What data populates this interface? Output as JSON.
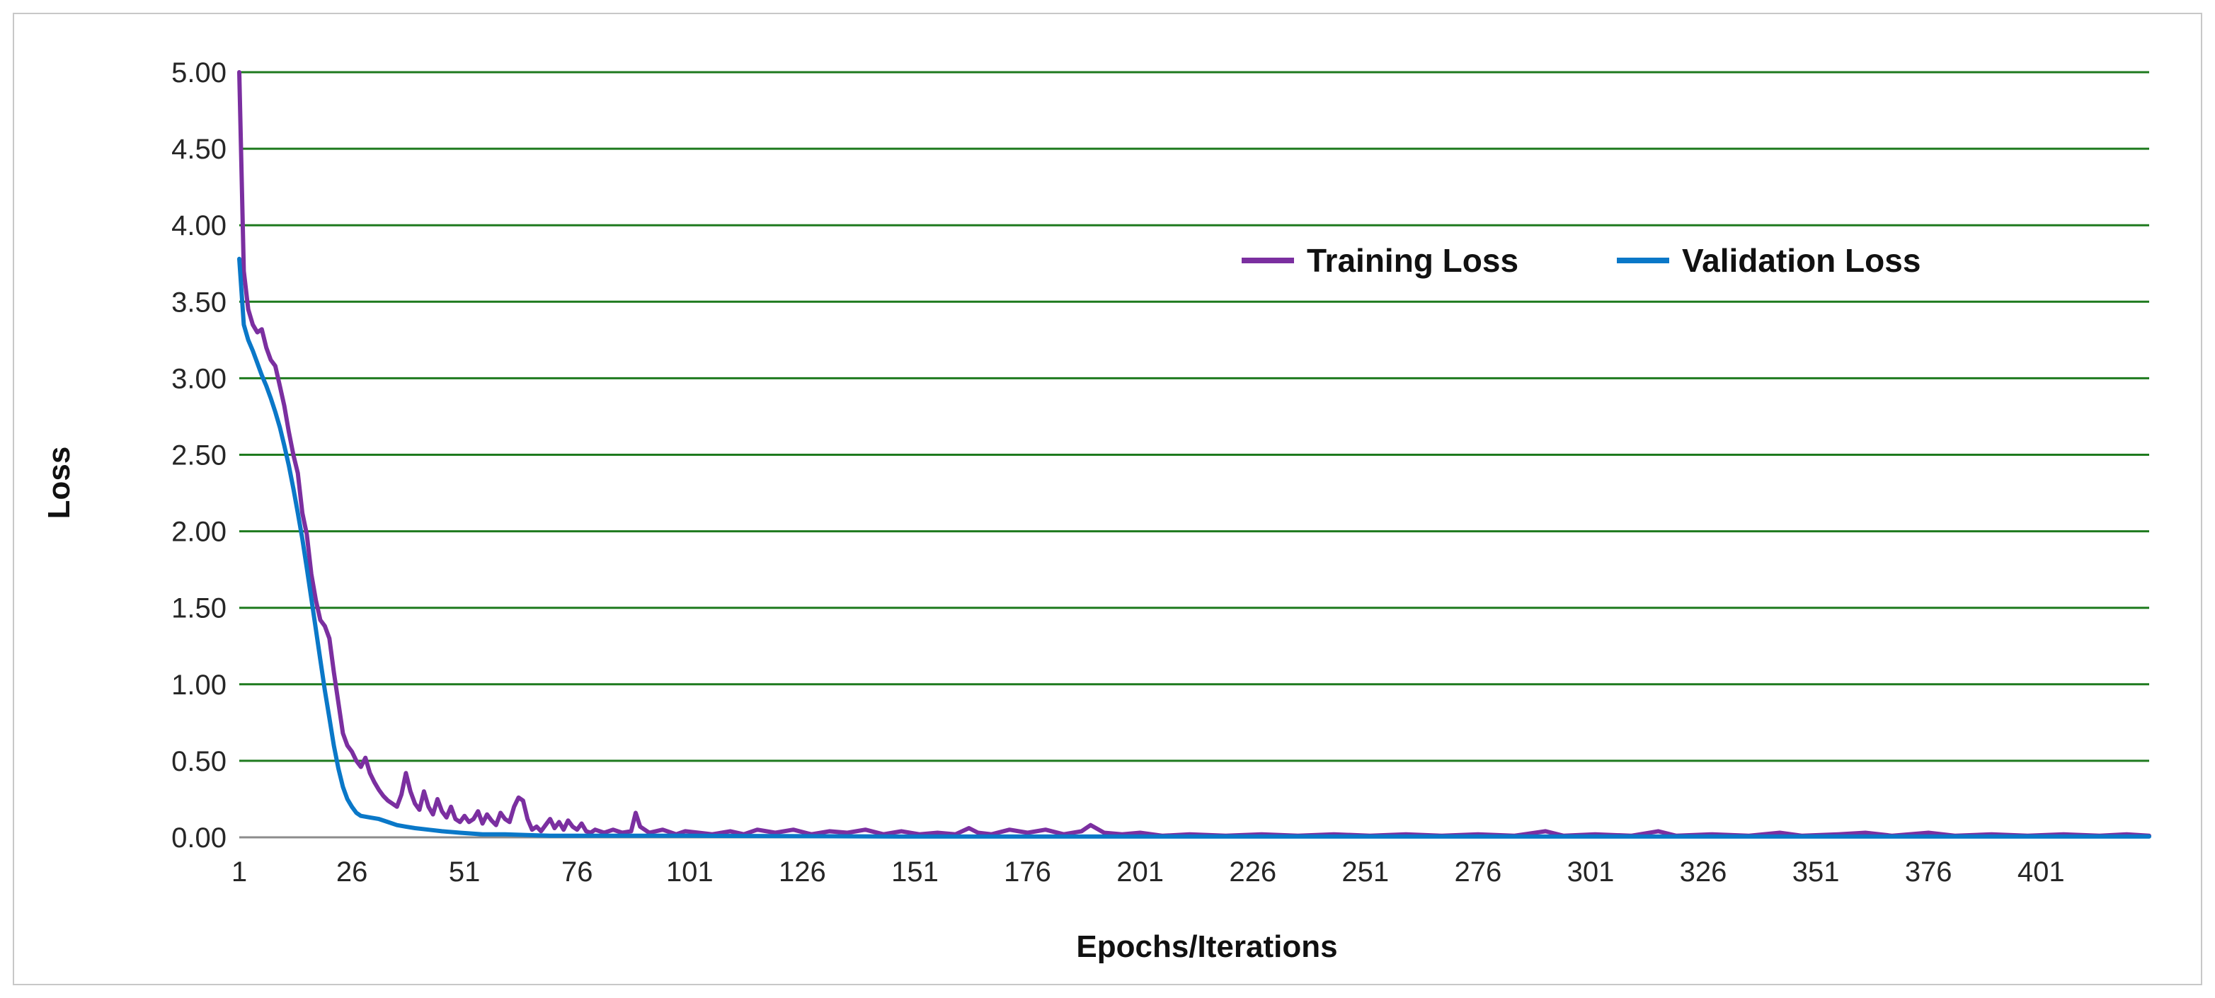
{
  "chart_data": {
    "type": "line",
    "title": "",
    "xlabel": "Epochs/Iterations",
    "ylabel": "Loss",
    "xlim": [
      1,
      425
    ],
    "ylim": [
      0,
      5
    ],
    "y_ticks": [
      "0.00",
      "0.50",
      "1.00",
      "1.50",
      "2.00",
      "2.50",
      "3.00",
      "3.50",
      "4.00",
      "4.50",
      "5.00"
    ],
    "y_tick_values": [
      0,
      0.5,
      1,
      1.5,
      2,
      2.5,
      3,
      3.5,
      4,
      4.5,
      5
    ],
    "x_ticks": [
      "1",
      "26",
      "51",
      "76",
      "101",
      "126",
      "151",
      "176",
      "201",
      "226",
      "251",
      "276",
      "301",
      "326",
      "351",
      "376",
      "401"
    ],
    "x_tick_values": [
      1,
      26,
      51,
      76,
      101,
      126,
      151,
      176,
      201,
      226,
      251,
      276,
      301,
      326,
      351,
      376,
      401
    ],
    "grid": "horizontal",
    "gridline_color": "#1e7a1e",
    "legend_position": "top-right",
    "series": [
      {
        "name": "Training Loss",
        "color": "#7b2fa0",
        "points": [
          [
            1,
            5.0
          ],
          [
            2,
            3.7
          ],
          [
            3,
            3.45
          ],
          [
            4,
            3.35
          ],
          [
            5,
            3.3
          ],
          [
            6,
            3.32
          ],
          [
            7,
            3.2
          ],
          [
            8,
            3.12
          ],
          [
            9,
            3.08
          ],
          [
            10,
            2.95
          ],
          [
            11,
            2.82
          ],
          [
            12,
            2.65
          ],
          [
            13,
            2.5
          ],
          [
            14,
            2.38
          ],
          [
            15,
            2.12
          ],
          [
            16,
            1.98
          ],
          [
            17,
            1.72
          ],
          [
            18,
            1.55
          ],
          [
            19,
            1.42
          ],
          [
            20,
            1.38
          ],
          [
            21,
            1.3
          ],
          [
            22,
            1.08
          ],
          [
            23,
            0.88
          ],
          [
            24,
            0.68
          ],
          [
            25,
            0.6
          ],
          [
            26,
            0.56
          ],
          [
            27,
            0.5
          ],
          [
            28,
            0.46
          ],
          [
            29,
            0.52
          ],
          [
            30,
            0.42
          ],
          [
            31,
            0.36
          ],
          [
            32,
            0.31
          ],
          [
            33,
            0.27
          ],
          [
            34,
            0.24
          ],
          [
            35,
            0.22
          ],
          [
            36,
            0.2
          ],
          [
            37,
            0.28
          ],
          [
            38,
            0.42
          ],
          [
            39,
            0.3
          ],
          [
            40,
            0.22
          ],
          [
            41,
            0.18
          ],
          [
            42,
            0.3
          ],
          [
            43,
            0.2
          ],
          [
            44,
            0.15
          ],
          [
            45,
            0.25
          ],
          [
            46,
            0.17
          ],
          [
            47,
            0.13
          ],
          [
            48,
            0.2
          ],
          [
            49,
            0.12
          ],
          [
            50,
            0.1
          ],
          [
            51,
            0.14
          ],
          [
            52,
            0.1
          ],
          [
            53,
            0.12
          ],
          [
            54,
            0.17
          ],
          [
            55,
            0.09
          ],
          [
            56,
            0.15
          ],
          [
            57,
            0.11
          ],
          [
            58,
            0.08
          ],
          [
            59,
            0.16
          ],
          [
            60,
            0.12
          ],
          [
            61,
            0.1
          ],
          [
            62,
            0.2
          ],
          [
            63,
            0.26
          ],
          [
            64,
            0.24
          ],
          [
            65,
            0.12
          ],
          [
            66,
            0.05
          ],
          [
            67,
            0.07
          ],
          [
            68,
            0.04
          ],
          [
            69,
            0.08
          ],
          [
            70,
            0.12
          ],
          [
            71,
            0.06
          ],
          [
            72,
            0.1
          ],
          [
            73,
            0.05
          ],
          [
            74,
            0.11
          ],
          [
            75,
            0.07
          ],
          [
            76,
            0.05
          ],
          [
            77,
            0.09
          ],
          [
            78,
            0.04
          ],
          [
            79,
            0.03
          ],
          [
            80,
            0.05
          ],
          [
            82,
            0.03
          ],
          [
            84,
            0.05
          ],
          [
            86,
            0.03
          ],
          [
            88,
            0.04
          ],
          [
            89,
            0.16
          ],
          [
            90,
            0.07
          ],
          [
            92,
            0.03
          ],
          [
            95,
            0.05
          ],
          [
            98,
            0.02
          ],
          [
            100,
            0.04
          ],
          [
            103,
            0.03
          ],
          [
            106,
            0.02
          ],
          [
            110,
            0.04
          ],
          [
            113,
            0.02
          ],
          [
            116,
            0.05
          ],
          [
            120,
            0.03
          ],
          [
            124,
            0.05
          ],
          [
            128,
            0.02
          ],
          [
            132,
            0.04
          ],
          [
            136,
            0.03
          ],
          [
            140,
            0.05
          ],
          [
            144,
            0.02
          ],
          [
            148,
            0.04
          ],
          [
            152,
            0.02
          ],
          [
            156,
            0.03
          ],
          [
            160,
            0.02
          ],
          [
            163,
            0.06
          ],
          [
            165,
            0.03
          ],
          [
            168,
            0.02
          ],
          [
            172,
            0.05
          ],
          [
            176,
            0.03
          ],
          [
            180,
            0.05
          ],
          [
            184,
            0.02
          ],
          [
            188,
            0.04
          ],
          [
            190,
            0.08
          ],
          [
            193,
            0.03
          ],
          [
            197,
            0.02
          ],
          [
            201,
            0.03
          ],
          [
            206,
            0.01
          ],
          [
            212,
            0.02
          ],
          [
            220,
            0.01
          ],
          [
            228,
            0.02
          ],
          [
            236,
            0.01
          ],
          [
            244,
            0.02
          ],
          [
            252,
            0.01
          ],
          [
            260,
            0.02
          ],
          [
            268,
            0.01
          ],
          [
            276,
            0.02
          ],
          [
            284,
            0.01
          ],
          [
            291,
            0.04
          ],
          [
            295,
            0.01
          ],
          [
            302,
            0.02
          ],
          [
            310,
            0.01
          ],
          [
            316,
            0.04
          ],
          [
            320,
            0.01
          ],
          [
            328,
            0.02
          ],
          [
            336,
            0.01
          ],
          [
            343,
            0.03
          ],
          [
            348,
            0.01
          ],
          [
            356,
            0.02
          ],
          [
            362,
            0.03
          ],
          [
            368,
            0.01
          ],
          [
            376,
            0.03
          ],
          [
            382,
            0.01
          ],
          [
            390,
            0.02
          ],
          [
            398,
            0.01
          ],
          [
            406,
            0.02
          ],
          [
            414,
            0.01
          ],
          [
            420,
            0.02
          ],
          [
            425,
            0.01
          ]
        ]
      },
      {
        "name": "Validation Loss",
        "color": "#0a78c8",
        "points": [
          [
            1,
            3.78
          ],
          [
            2,
            3.35
          ],
          [
            3,
            3.25
          ],
          [
            4,
            3.18
          ],
          [
            5,
            3.1
          ],
          [
            6,
            3.02
          ],
          [
            7,
            2.95
          ],
          [
            8,
            2.87
          ],
          [
            9,
            2.78
          ],
          [
            10,
            2.68
          ],
          [
            11,
            2.56
          ],
          [
            12,
            2.43
          ],
          [
            13,
            2.28
          ],
          [
            14,
            2.12
          ],
          [
            15,
            1.95
          ],
          [
            16,
            1.76
          ],
          [
            17,
            1.56
          ],
          [
            18,
            1.36
          ],
          [
            19,
            1.16
          ],
          [
            20,
            0.96
          ],
          [
            21,
            0.78
          ],
          [
            22,
            0.6
          ],
          [
            23,
            0.45
          ],
          [
            24,
            0.33
          ],
          [
            25,
            0.25
          ],
          [
            26,
            0.2
          ],
          [
            27,
            0.16
          ],
          [
            28,
            0.14
          ],
          [
            30,
            0.13
          ],
          [
            32,
            0.12
          ],
          [
            34,
            0.1
          ],
          [
            36,
            0.08
          ],
          [
            38,
            0.07
          ],
          [
            40,
            0.06
          ],
          [
            43,
            0.05
          ],
          [
            46,
            0.04
          ],
          [
            50,
            0.03
          ],
          [
            55,
            0.02
          ],
          [
            60,
            0.02
          ],
          [
            70,
            0.01
          ],
          [
            80,
            0.01
          ],
          [
            100,
            0.01
          ],
          [
            150,
            0.005
          ],
          [
            200,
            0.005
          ],
          [
            300,
            0.005
          ],
          [
            425,
            0.005
          ]
        ]
      }
    ]
  }
}
